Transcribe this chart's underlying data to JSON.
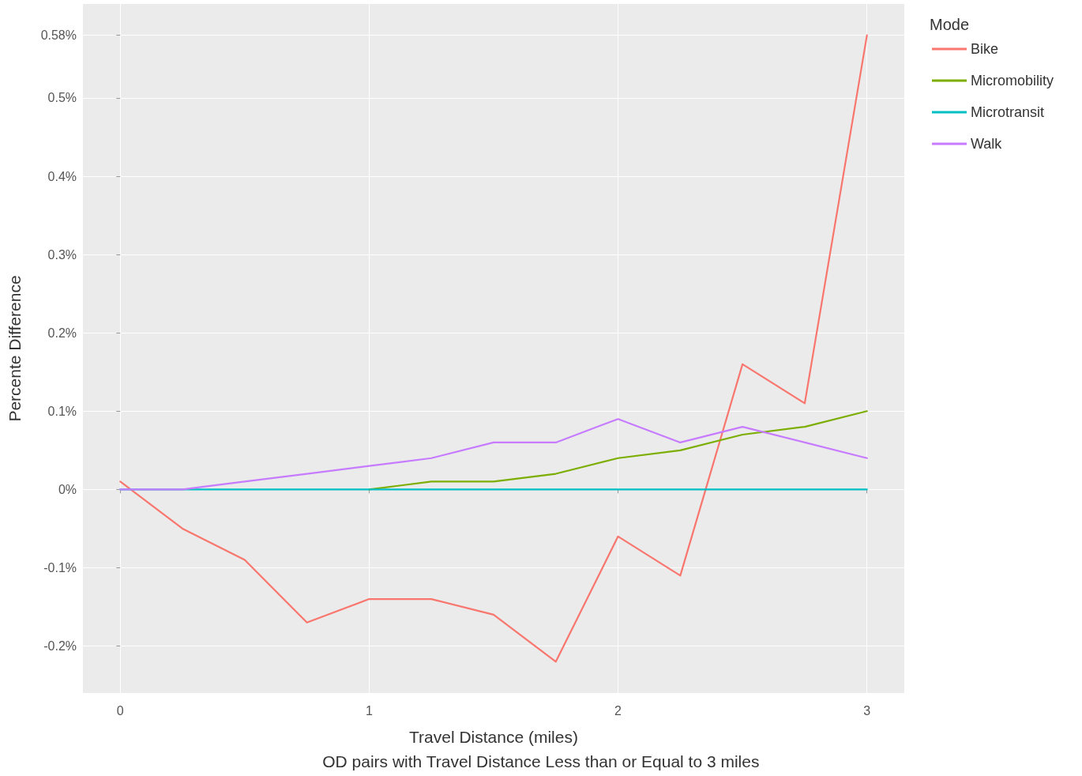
{
  "chart_data": {
    "type": "line",
    "xlabel": "Travel Distance (miles)",
    "ylabel": "Percente Difference",
    "legend_title": "Mode",
    "legend": "right",
    "grid": true,
    "marker": "none",
    "line_style": "solid",
    "x": [
      0,
      0.25,
      0.5,
      0.75,
      1,
      1.25,
      1.5,
      1.75,
      2,
      2.25,
      2.5,
      2.75,
      3
    ],
    "xlim": [
      -0.15,
      3.15
    ],
    "xticks": [
      0,
      1,
      2,
      3
    ],
    "ylim": [
      -0.26,
      0.62
    ],
    "yticks": [
      {
        "value": -0.2,
        "label": "-0.2%"
      },
      {
        "value": -0.1,
        "label": "-0.1%"
      },
      {
        "value": 0,
        "label": "0%"
      },
      {
        "value": 0.1,
        "label": "0.1%"
      },
      {
        "value": 0.2,
        "label": "0.2%"
      },
      {
        "value": 0.3,
        "label": "0.3%"
      },
      {
        "value": 0.4,
        "label": "0.4%"
      },
      {
        "value": 0.5,
        "label": "0.5%"
      },
      {
        "value": 0.58,
        "label": "0.58%"
      }
    ],
    "series": [
      {
        "name": "Bike",
        "color": "#f8766d",
        "values": [
          0.01,
          -0.05,
          -0.09,
          -0.17,
          -0.14,
          -0.14,
          -0.16,
          -0.22,
          -0.06,
          -0.11,
          0.16,
          0.11,
          0.58
        ]
      },
      {
        "name": "Micromobility",
        "color": "#7cae00",
        "values": [
          null,
          null,
          null,
          null,
          0,
          0.01,
          0.01,
          0.02,
          0.04,
          0.05,
          0.07,
          0.08,
          0.1
        ]
      },
      {
        "name": "Microtransit",
        "color": "#00bfc4",
        "values": [
          0,
          0,
          0,
          0,
          0,
          0,
          0,
          0,
          0,
          0,
          0,
          0,
          0
        ]
      },
      {
        "name": "Walk",
        "color": "#c77cff",
        "values": [
          0,
          0,
          0.01,
          0.02,
          0.03,
          0.04,
          0.06,
          0.06,
          0.09,
          0.06,
          0.08,
          0.06,
          0.04
        ]
      }
    ],
    "annotations": [
      "OD pairs with Travel Distance Less than or Equal to 3 miles"
    ]
  }
}
